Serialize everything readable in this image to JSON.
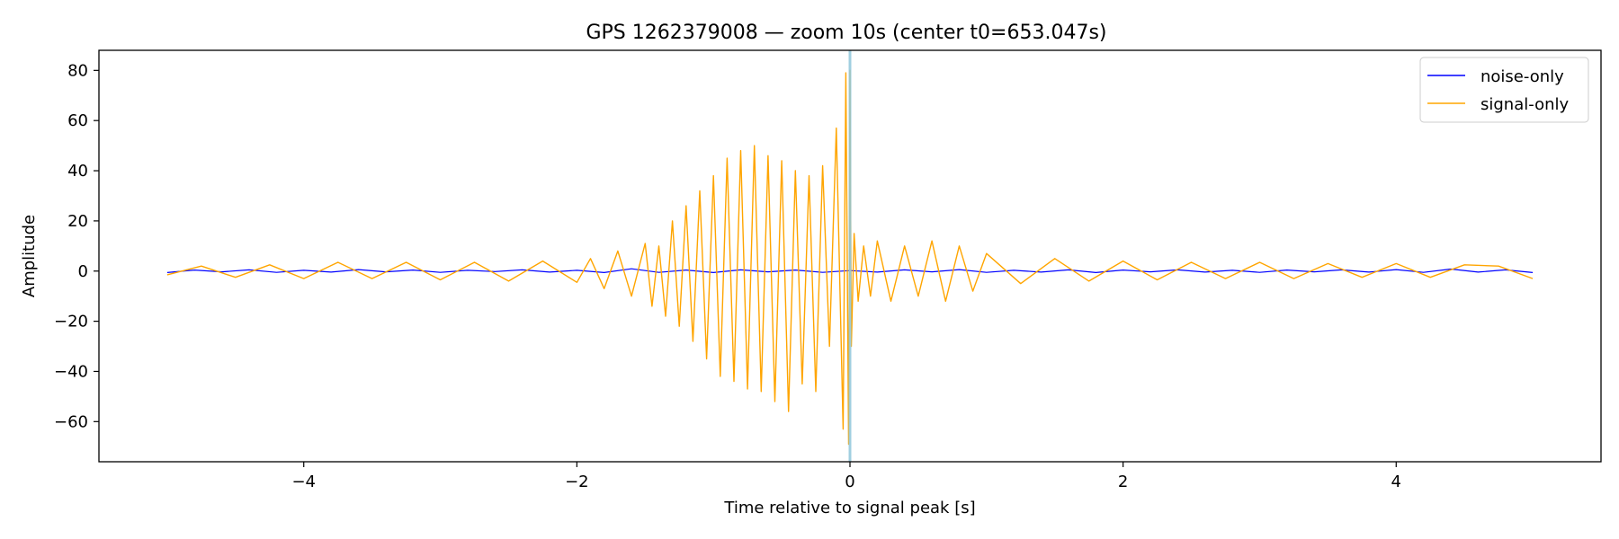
{
  "chart_data": {
    "type": "line",
    "title": "GPS 1262379008 — zoom 10s (center t0=653.047s)",
    "xlabel": "Time relative to signal peak [s]",
    "ylabel": "Amplitude",
    "xlim": [
      -5.5,
      5.5
    ],
    "ylim": [
      -76,
      88
    ],
    "xticks": [
      -4,
      -2,
      0,
      2,
      4
    ],
    "xtick_labels": [
      "−4",
      "−2",
      "0",
      "2",
      "4"
    ],
    "yticks": [
      -60,
      -40,
      -20,
      0,
      20,
      40,
      60,
      80
    ],
    "ytick_labels": [
      "−60",
      "−40",
      "−20",
      "0",
      "20",
      "40",
      "60",
      "80"
    ],
    "grid": false,
    "legend_position": "top-right",
    "vline": {
      "x": 0,
      "color": "#8fc7da"
    },
    "series": [
      {
        "name": "noise-only",
        "color": "#0000ff",
        "x": [
          -5.0,
          -4.8,
          -4.6,
          -4.4,
          -4.2,
          -4.0,
          -3.8,
          -3.6,
          -3.4,
          -3.2,
          -3.0,
          -2.8,
          -2.6,
          -2.4,
          -2.2,
          -2.0,
          -1.8,
          -1.6,
          -1.4,
          -1.2,
          -1.0,
          -0.8,
          -0.6,
          -0.4,
          -0.2,
          0.0,
          0.2,
          0.4,
          0.6,
          0.8,
          1.0,
          1.2,
          1.4,
          1.6,
          1.8,
          2.0,
          2.2,
          2.4,
          2.6,
          2.8,
          3.0,
          3.2,
          3.4,
          3.6,
          3.8,
          4.0,
          4.2,
          4.4,
          4.6,
          4.8,
          5.0
        ],
        "values": [
          -0.6,
          0.4,
          -0.3,
          0.5,
          -0.5,
          0.3,
          -0.4,
          0.6,
          -0.3,
          0.4,
          -0.5,
          0.3,
          -0.2,
          0.5,
          -0.4,
          0.3,
          -0.6,
          0.9,
          -0.5,
          0.4,
          -0.6,
          0.5,
          -0.3,
          0.4,
          -0.5,
          0.2,
          -0.4,
          0.5,
          -0.3,
          0.6,
          -0.5,
          0.3,
          -0.4,
          0.5,
          -0.6,
          0.4,
          -0.3,
          0.5,
          -0.4,
          0.3,
          -0.5,
          0.4,
          -0.3,
          0.5,
          -0.4,
          0.6,
          -0.5,
          0.8,
          -0.4,
          0.5,
          -0.6
        ]
      },
      {
        "name": "signal-only",
        "color": "#ffa500",
        "x": [
          -5.0,
          -4.75,
          -4.5,
          -4.25,
          -4.0,
          -3.75,
          -3.5,
          -3.25,
          -3.0,
          -2.75,
          -2.5,
          -2.25,
          -2.0,
          -1.9,
          -1.8,
          -1.7,
          -1.6,
          -1.5,
          -1.45,
          -1.4,
          -1.35,
          -1.3,
          -1.25,
          -1.2,
          -1.15,
          -1.1,
          -1.05,
          -1.0,
          -0.95,
          -0.9,
          -0.85,
          -0.8,
          -0.75,
          -0.7,
          -0.65,
          -0.6,
          -0.55,
          -0.5,
          -0.45,
          -0.4,
          -0.35,
          -0.3,
          -0.25,
          -0.2,
          -0.15,
          -0.1,
          -0.05,
          -0.03,
          -0.01,
          0.0,
          0.01,
          0.03,
          0.06,
          0.1,
          0.15,
          0.2,
          0.3,
          0.4,
          0.5,
          0.6,
          0.7,
          0.8,
          0.9,
          1.0,
          1.25,
          1.5,
          1.75,
          2.0,
          2.25,
          2.5,
          2.75,
          3.0,
          3.25,
          3.5,
          3.75,
          4.0,
          4.25,
          4.5,
          4.75,
          5.0
        ],
        "values": [
          -1.5,
          2.0,
          -2.5,
          2.5,
          -3.0,
          3.5,
          -3.0,
          3.5,
          -3.5,
          3.5,
          -4.0,
          4.0,
          -4.5,
          5.0,
          -7.0,
          8.0,
          -10.0,
          11.0,
          -14.0,
          10.0,
          -18.0,
          20.0,
          -22.0,
          26.0,
          -28.0,
          32.0,
          -35.0,
          38.0,
          -42.0,
          45.0,
          -44.0,
          48.0,
          -47.0,
          50.0,
          -48.0,
          46.0,
          -52.0,
          44.0,
          -56.0,
          40.0,
          -45.0,
          38.0,
          -48.0,
          42.0,
          -30.0,
          57.0,
          -63.0,
          79.0,
          -69.0,
          80.0,
          -30.0,
          15.0,
          -12.0,
          10.0,
          -10.0,
          12.0,
          -12.0,
          10.0,
          -10.0,
          12.0,
          -12.0,
          10.0,
          -8.0,
          7.0,
          -5.0,
          5.0,
          -4.0,
          4.0,
          -3.5,
          3.5,
          -3.0,
          3.5,
          -3.0,
          3.0,
          -2.5,
          3.0,
          -2.5,
          2.5,
          2.0,
          -3.0
        ]
      }
    ]
  }
}
